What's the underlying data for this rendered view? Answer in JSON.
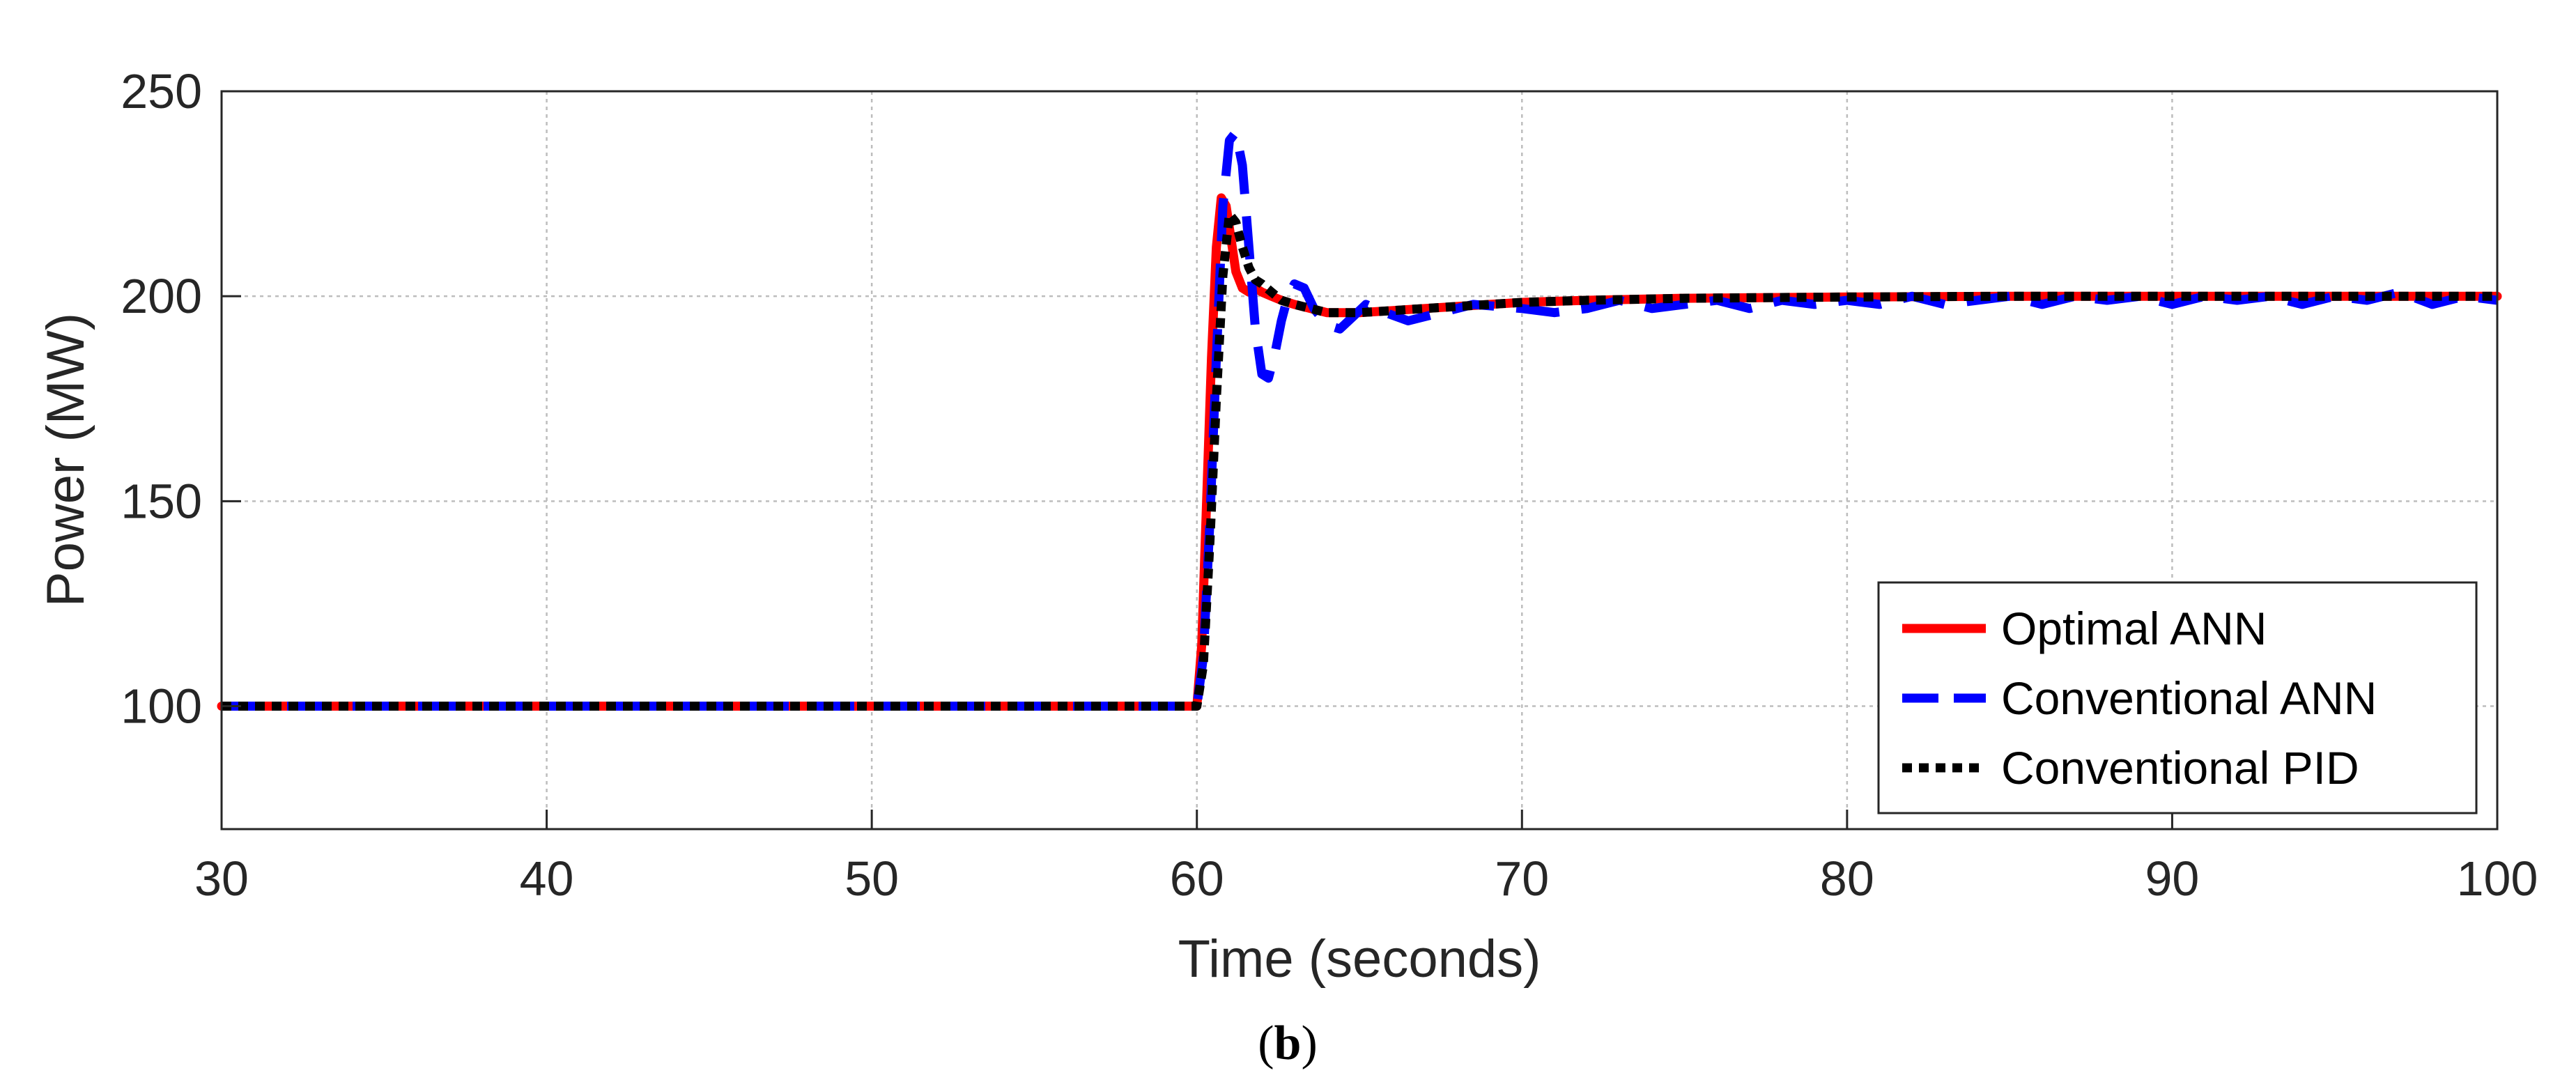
{
  "chart_data": {
    "type": "line",
    "caption_open": "(",
    "caption_letter": "b",
    "caption_close": ")",
    "xlabel": "Time (seconds)",
    "ylabel": "Power (MW)",
    "xlim": [
      30,
      100
    ],
    "ylim": [
      70,
      250
    ],
    "xticks": [
      30,
      40,
      50,
      60,
      70,
      80,
      90,
      100
    ],
    "yticks": [
      100,
      150,
      200,
      250
    ],
    "grid": true,
    "legend_position": "bottom-right",
    "series": [
      {
        "name": "Optimal ANN",
        "color": "#ff0000",
        "style": "solid",
        "x": [
          30,
          60,
          60.15,
          60.3,
          60.45,
          60.6,
          60.75,
          60.9,
          61.05,
          61.2,
          61.4,
          61.6,
          61.8,
          62.0,
          62.3,
          62.6,
          63.0,
          63.5,
          64.0,
          65.0,
          66.0,
          67.0,
          68.0,
          70.0,
          72.0,
          75.0,
          80.0,
          85.0,
          90.0,
          95.0,
          100.0
        ],
        "y": [
          100,
          100,
          115,
          150,
          185,
          212,
          224,
          222,
          214,
          206,
          202,
          201,
          202,
          201,
          200,
          199,
          198,
          197,
          196,
          196,
          196.5,
          197,
          197.5,
          198.5,
          199,
          199.5,
          199.8,
          200,
          200,
          200,
          200
        ]
      },
      {
        "name": "Conventional ANN",
        "color": "#0000ff",
        "style": "dashed",
        "x": [
          30,
          60,
          60.2,
          60.4,
          60.6,
          60.8,
          61.0,
          61.2,
          61.4,
          61.6,
          61.8,
          62.0,
          62.2,
          62.4,
          62.6,
          62.8,
          63.0,
          63.3,
          63.6,
          64.0,
          64.4,
          64.8,
          65.2,
          65.8,
          66.5,
          67.5,
          68.5,
          70.0,
          71.0,
          72.0,
          73.0,
          74.0,
          75.0,
          76.0,
          77.0,
          78.0,
          79.0,
          80.0,
          81.0,
          82.0,
          83.0,
          84.0,
          85.0,
          86.0,
          87.0,
          88.0,
          89.0,
          90.0,
          91.0,
          92.0,
          93.0,
          94.0,
          95.0,
          96.0,
          97.0,
          98.0,
          99.0,
          100.0
        ],
        "y": [
          100,
          100,
          112,
          145,
          185,
          222,
          238,
          240,
          232,
          212,
          192,
          181,
          180,
          186,
          194,
          200,
          203,
          202,
          197,
          193,
          192,
          195,
          198,
          196,
          194,
          196,
          198,
          197,
          196,
          197,
          199,
          197,
          198,
          199,
          197,
          199,
          198,
          199,
          198,
          200,
          198,
          199,
          200,
          198,
          200,
          199,
          200,
          198,
          200,
          199,
          200,
          198,
          200,
          199,
          201,
          198,
          200,
          199
        ]
      },
      {
        "name": "Conventional PID",
        "color": "#000000",
        "style": "dotted",
        "x": [
          30,
          60,
          60.2,
          60.4,
          60.6,
          60.8,
          61.0,
          61.2,
          61.4,
          61.6,
          61.8,
          62.0,
          62.3,
          62.6,
          63.0,
          63.5,
          64.0,
          65.0,
          66.0,
          67.0,
          68.0,
          70.0,
          72.0,
          75.0,
          80.0,
          85.0,
          90.0,
          95.0,
          100.0
        ],
        "y": [
          100,
          100,
          110,
          140,
          175,
          205,
          220,
          218,
          212,
          207,
          204,
          203,
          201,
          199,
          198,
          197,
          196,
          196,
          196.5,
          197,
          197.5,
          198.5,
          199,
          199.5,
          199.8,
          200,
          200,
          200,
          200
        ]
      }
    ]
  }
}
